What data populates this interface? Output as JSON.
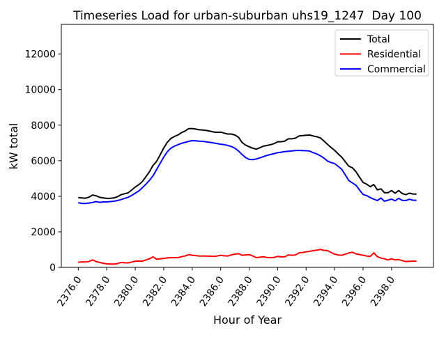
{
  "figure": {
    "background": "#ffffff"
  },
  "chart_data": {
    "type": "line",
    "title": "Timeseries Load for urban-suburban uhs19_1247  Day 100",
    "xlabel": "Hour of Year",
    "ylabel": "kW total",
    "xlim": [
      2374.81,
      2400.94
    ],
    "ylim": [
      0,
      13670
    ],
    "grid": false,
    "legend_position": "upper right",
    "xticks": [
      2376,
      2378,
      2380,
      2382,
      2384,
      2386,
      2388,
      2390,
      2392,
      2394,
      2396,
      2398
    ],
    "xtick_labels": [
      "2376.0",
      "2378.0",
      "2380.0",
      "2382.0",
      "2384.0",
      "2386.0",
      "2388.0",
      "2390.0",
      "2392.0",
      "2394.0",
      "2396.0",
      "2398.0"
    ],
    "yticks": [
      0,
      2000,
      4000,
      6000,
      8000,
      10000,
      12000
    ],
    "ytick_labels": [
      "0",
      "2000",
      "4000",
      "6000",
      "8000",
      "10000",
      "12000"
    ],
    "x": [
      2376.0,
      2376.25,
      2376.5,
      2376.75,
      2377.0,
      2377.25,
      2377.5,
      2377.75,
      2378.0,
      2378.25,
      2378.5,
      2378.75,
      2379.0,
      2379.25,
      2379.5,
      2379.75,
      2380.0,
      2380.25,
      2380.5,
      2380.75,
      2381.0,
      2381.25,
      2381.5,
      2381.75,
      2382.0,
      2382.25,
      2382.5,
      2382.75,
      2383.0,
      2383.25,
      2383.5,
      2383.75,
      2384.0,
      2384.25,
      2384.5,
      2384.75,
      2385.0,
      2385.25,
      2385.5,
      2385.75,
      2386.0,
      2386.25,
      2386.5,
      2386.75,
      2387.0,
      2387.25,
      2387.5,
      2387.75,
      2388.0,
      2388.25,
      2388.5,
      2388.75,
      2389.0,
      2389.25,
      2389.5,
      2389.75,
      2390.0,
      2390.25,
      2390.5,
      2390.75,
      2391.0,
      2391.25,
      2391.5,
      2391.75,
      2392.0,
      2392.25,
      2392.5,
      2392.75,
      2393.0,
      2393.25,
      2393.5,
      2393.75,
      2394.0,
      2394.25,
      2394.5,
      2394.75,
      2395.0,
      2395.25,
      2395.5,
      2395.75,
      2396.0,
      2396.25,
      2396.5,
      2396.75,
      2397.0,
      2397.25,
      2397.5,
      2397.75,
      2398.0,
      2398.25,
      2398.5,
      2398.75,
      2399.0,
      2399.25,
      2399.5,
      2399.75
    ],
    "series": [
      {
        "name": "Total",
        "color": "#000000",
        "values": [
          3930,
          3910,
          3890,
          3950,
          4070,
          4030,
          3940,
          3910,
          3880,
          3885,
          3905,
          3970,
          4090,
          4140,
          4190,
          4350,
          4520,
          4655,
          4830,
          5100,
          5380,
          5740,
          5960,
          6330,
          6710,
          7030,
          7250,
          7365,
          7450,
          7580,
          7670,
          7805,
          7810,
          7780,
          7740,
          7730,
          7700,
          7660,
          7615,
          7600,
          7610,
          7550,
          7500,
          7500,
          7445,
          7320,
          7030,
          6880,
          6785,
          6700,
          6650,
          6730,
          6820,
          6860,
          6900,
          6960,
          7065,
          7070,
          7100,
          7230,
          7230,
          7270,
          7390,
          7410,
          7435,
          7445,
          7390,
          7350,
          7285,
          7110,
          6920,
          6740,
          6585,
          6380,
          6200,
          5940,
          5690,
          5600,
          5380,
          5070,
          4780,
          4680,
          4535,
          4660,
          4360,
          4420,
          4200,
          4200,
          4320,
          4170,
          4320,
          4150,
          4090,
          4170,
          4130,
          4120
        ]
      },
      {
        "name": "Residential",
        "color": "#ff0000",
        "values": [
          290,
          310,
          300,
          330,
          420,
          330,
          280,
          230,
          200,
          185,
          185,
          210,
          280,
          260,
          250,
          300,
          350,
          355,
          350,
          420,
          480,
          590,
          460,
          480,
          510,
          530,
          550,
          545,
          550,
          600,
          640,
          715,
          680,
          660,
          640,
          640,
          640,
          630,
          615,
          640,
          680,
          650,
          640,
          700,
          745,
          770,
          680,
          700,
          715,
          640,
          550,
          570,
          590,
          560,
          550,
          560,
          615,
          590,
          590,
          700,
          680,
          700,
          810,
          840,
          875,
          905,
          940,
          970,
          1005,
          960,
          940,
          840,
          745,
          700,
          680,
          740,
          810,
          850,
          760,
          720,
          680,
          640,
          615,
          820,
          600,
          520,
          480,
          420,
          480,
          420,
          440,
          380,
          330,
          340,
          350,
          350
        ]
      },
      {
        "name": "Commercial",
        "color": "#0000ff",
        "values": [
          3640,
          3600,
          3590,
          3620,
          3650,
          3700,
          3660,
          3680,
          3680,
          3700,
          3720,
          3760,
          3810,
          3880,
          3940,
          4050,
          4170,
          4300,
          4480,
          4680,
          4900,
          5150,
          5500,
          5850,
          6200,
          6500,
          6700,
          6820,
          6900,
          6980,
          7030,
          7090,
          7130,
          7120,
          7100,
          7090,
          7060,
          7030,
          7000,
          6960,
          6930,
          6900,
          6860,
          6800,
          6700,
          6550,
          6350,
          6180,
          6070,
          6060,
          6100,
          6160,
          6230,
          6300,
          6350,
          6400,
          6450,
          6480,
          6510,
          6530,
          6550,
          6570,
          6580,
          6570,
          6560,
          6540,
          6450,
          6380,
          6280,
          6150,
          5980,
          5900,
          5840,
          5680,
          5520,
          5200,
          4880,
          4750,
          4620,
          4350,
          4100,
          4040,
          3920,
          3840,
          3760,
          3900,
          3720,
          3780,
          3840,
          3750,
          3880,
          3770,
          3760,
          3830,
          3780,
          3770
        ]
      }
    ],
    "style": {
      "line_width": 2,
      "spine_color": "#000000",
      "legend_border_color": "#cccccc",
      "legend_background": "#ffffff"
    }
  }
}
